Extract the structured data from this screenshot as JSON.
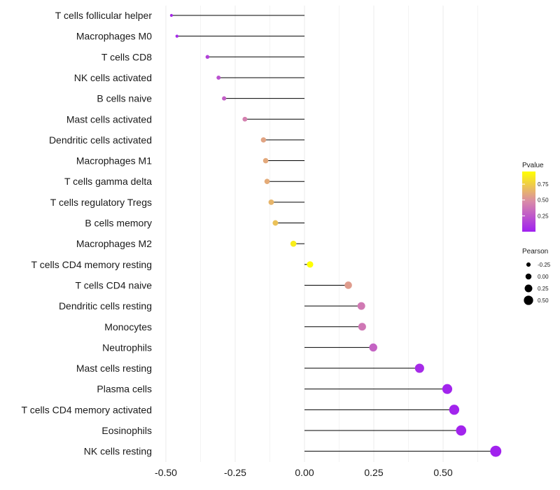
{
  "chart_data": {
    "type": "lollipop",
    "title": "",
    "xlabel": "",
    "ylabel": "",
    "xlim": [
      -0.5,
      0.67
    ],
    "x_ticks": [
      "-0.50",
      "-0.25",
      "0.00",
      "0.25",
      "0.50"
    ],
    "x_tick_values": [
      -0.5,
      -0.25,
      0.0,
      0.25,
      0.5
    ],
    "grid": "vertical",
    "series": [
      {
        "label": "T cells follicular helper",
        "value": -0.48,
        "pvalue": 0.05
      },
      {
        "label": "Macrophages M0",
        "value": -0.46,
        "pvalue": 0.05
      },
      {
        "label": "T cells CD8",
        "value": -0.35,
        "pvalue": 0.15
      },
      {
        "label": "NK cells activated",
        "value": -0.31,
        "pvalue": 0.22
      },
      {
        "label": "B cells naive",
        "value": -0.29,
        "pvalue": 0.28
      },
      {
        "label": "Mast cells activated",
        "value": -0.215,
        "pvalue": 0.43
      },
      {
        "label": "Dendritic cells activated",
        "value": -0.148,
        "pvalue": 0.58
      },
      {
        "label": "Macrophages M1",
        "value": -0.14,
        "pvalue": 0.6
      },
      {
        "label": "T cells gamma delta",
        "value": -0.135,
        "pvalue": 0.61
      },
      {
        "label": "T cells regulatory  Tregs ",
        "value": -0.12,
        "pvalue": 0.65
      },
      {
        "label": "B cells memory",
        "value": -0.105,
        "pvalue": 0.7
      },
      {
        "label": "Macrophages M2",
        "value": -0.04,
        "pvalue": 0.88
      },
      {
        "label": "T cells CD4 memory resting",
        "value": 0.02,
        "pvalue": 0.95
      },
      {
        "label": "T cells CD4 naive",
        "value": 0.158,
        "pvalue": 0.55
      },
      {
        "label": "Dendritic cells resting",
        "value": 0.205,
        "pvalue": 0.4
      },
      {
        "label": "Monocytes",
        "value": 0.208,
        "pvalue": 0.39
      },
      {
        "label": "Neutrophils",
        "value": 0.248,
        "pvalue": 0.3
      },
      {
        "label": "Mast cells resting",
        "value": 0.415,
        "pvalue": 0.05
      },
      {
        "label": "Plasma cells",
        "value": 0.515,
        "pvalue": 0.02
      },
      {
        "label": "T cells CD4 memory activated",
        "value": 0.54,
        "pvalue": 0.02
      },
      {
        "label": "Eosinophils",
        "value": 0.565,
        "pvalue": 0.02
      },
      {
        "label": "NK cells resting",
        "value": 0.69,
        "pvalue": 0.01
      }
    ],
    "legend": {
      "position": "right",
      "color": {
        "title": "Pvalue",
        "ticks": [
          "0.75",
          "0.50",
          "0.25"
        ],
        "tick_values": [
          0.75,
          0.5,
          0.25
        ],
        "range": [
          0.0,
          0.95
        ]
      },
      "size": {
        "title": "Pearson",
        "ticks": [
          "-0.25",
          "0.00",
          "0.25",
          "0.50"
        ],
        "tick_values": [
          -0.25,
          0.0,
          0.25,
          0.5
        ]
      }
    },
    "colors": {
      "low": "#a020f0",
      "mid": "#d98aa8",
      "high": "#ffff00",
      "stem": "#000000",
      "grid": "#ebebeb"
    }
  }
}
